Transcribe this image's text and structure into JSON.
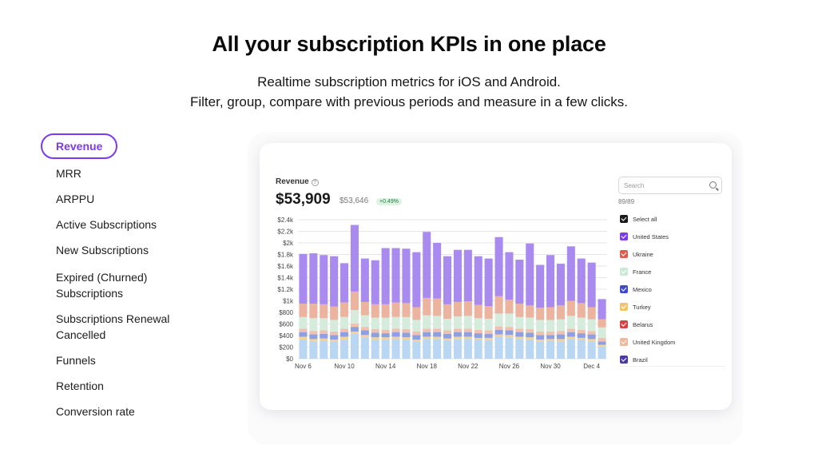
{
  "header": {
    "title": "All your subscription KPIs in one place",
    "subtitle_line1": "Realtime subscription metrics for iOS and Android.",
    "subtitle_line2": "Filter, group, compare with previous periods and measure in a few clicks."
  },
  "nav": {
    "active_index": 0,
    "items": [
      {
        "label": "Revenue"
      },
      {
        "label": "MRR"
      },
      {
        "label": "ARPPU"
      },
      {
        "label": "Active Subscriptions"
      },
      {
        "label": "New Subscriptions"
      },
      {
        "label": "Expired (Churned)",
        "label2": "Subscriptions"
      },
      {
        "label": "Subscriptions Renewal",
        "label2": "Cancelled"
      },
      {
        "label": "Funnels"
      },
      {
        "label": "Retention"
      },
      {
        "label": "Conversion rate"
      }
    ]
  },
  "card": {
    "metric_label": "Revenue",
    "info_icon": "info-icon",
    "value": "$53,909",
    "previous_value": "$53,646",
    "change_badge": "+0.49%"
  },
  "filter": {
    "search_placeholder": "Search",
    "count": "89/89",
    "items": [
      {
        "label": "Select all",
        "color": "#1a1a1a"
      },
      {
        "label": "United States",
        "color": "#7c3aed"
      },
      {
        "label": "Ukraine",
        "color": "#d9604f"
      },
      {
        "label": "France",
        "color": "#c9ead6"
      },
      {
        "label": "Mexico",
        "color": "#3f49d6"
      },
      {
        "label": "Turkey",
        "color": "#f2c46a"
      },
      {
        "label": "Belarus",
        "color": "#d64545"
      },
      {
        "label": "United Kingdom",
        "color": "#eeb89c"
      },
      {
        "label": "Brazil",
        "color": "#4b3aa6"
      }
    ]
  },
  "chart_data": {
    "type": "bar",
    "stacked": true,
    "y_ticks": [
      "$0",
      "$200",
      "$400",
      "$600",
      "$800",
      "$1k",
      "$1.2k",
      "$1.4k",
      "$1.6k",
      "$1.8k",
      "$2k",
      "$2.2k",
      "$2.4k"
    ],
    "ylim": [
      0,
      2400
    ],
    "x_tick_labels": [
      "Nov 6",
      "Nov 10",
      "Nov 14",
      "Nov 18",
      "Nov 22",
      "Nov 26",
      "Nov 30",
      "Dec 4"
    ],
    "categories": [
      "Nov 6",
      "Nov 7",
      "Nov 8",
      "Nov 9",
      "Nov 10",
      "Nov 11",
      "Nov 12",
      "Nov 13",
      "Nov 14",
      "Nov 15",
      "Nov 16",
      "Nov 17",
      "Nov 18",
      "Nov 19",
      "Nov 20",
      "Nov 21",
      "Nov 22",
      "Nov 23",
      "Nov 24",
      "Nov 25",
      "Nov 26",
      "Nov 27",
      "Nov 28",
      "Nov 29",
      "Nov 30",
      "Dec 1",
      "Dec 2",
      "Dec 3",
      "Dec 4",
      "Dec 5"
    ],
    "series": [
      {
        "color": "#b9d6f2",
        "values": [
          330,
          300,
          310,
          290,
          330,
          430,
          370,
          330,
          330,
          340,
          330,
          290,
          340,
          340,
          320,
          340,
          340,
          330,
          320,
          380,
          370,
          340,
          330,
          300,
          310,
          300,
          340,
          330,
          300,
          210
        ]
      },
      {
        "color": "#f3d29a",
        "values": [
          50,
          40,
          40,
          40,
          50,
          40,
          40,
          40,
          40,
          40,
          40,
          40,
          40,
          40,
          30,
          40,
          40,
          30,
          40,
          40,
          40,
          40,
          40,
          30,
          30,
          40,
          40,
          30,
          40,
          30
        ]
      },
      {
        "color": "#8fa0e2",
        "values": [
          80,
          80,
          80,
          80,
          80,
          80,
          80,
          80,
          70,
          80,
          80,
          80,
          80,
          80,
          80,
          80,
          80,
          80,
          70,
          80,
          80,
          80,
          80,
          80,
          70,
          80,
          80,
          80,
          80,
          60
        ]
      },
      {
        "color": "#f1c1b0",
        "values": [
          60,
          60,
          60,
          60,
          60,
          60,
          60,
          60,
          60,
          60,
          60,
          60,
          60,
          60,
          60,
          60,
          60,
          60,
          60,
          60,
          60,
          60,
          60,
          60,
          60,
          60,
          60,
          60,
          60,
          60
        ]
      },
      {
        "color": "#d5ecdd",
        "values": [
          200,
          220,
          210,
          200,
          200,
          230,
          200,
          200,
          210,
          200,
          210,
          200,
          230,
          220,
          200,
          210,
          220,
          200,
          200,
          220,
          230,
          200,
          200,
          200,
          200,
          200,
          220,
          210,
          200,
          180
        ]
      },
      {
        "color": "#ecb49e",
        "values": [
          230,
          250,
          240,
          230,
          250,
          320,
          230,
          230,
          230,
          250,
          240,
          220,
          300,
          300,
          250,
          250,
          250,
          230,
          220,
          300,
          240,
          230,
          210,
          210,
          220,
          240,
          260,
          250,
          210,
          140
        ]
      },
      {
        "color": "#a98aef",
        "values": [
          860,
          870,
          850,
          870,
          680,
          1150,
          750,
          760,
          970,
          940,
          940,
          950,
          1140,
          960,
          830,
          900,
          890,
          840,
          820,
          1020,
          820,
          760,
          1070,
          740,
          900,
          720,
          940,
          770,
          770,
          350
        ]
      }
    ]
  }
}
